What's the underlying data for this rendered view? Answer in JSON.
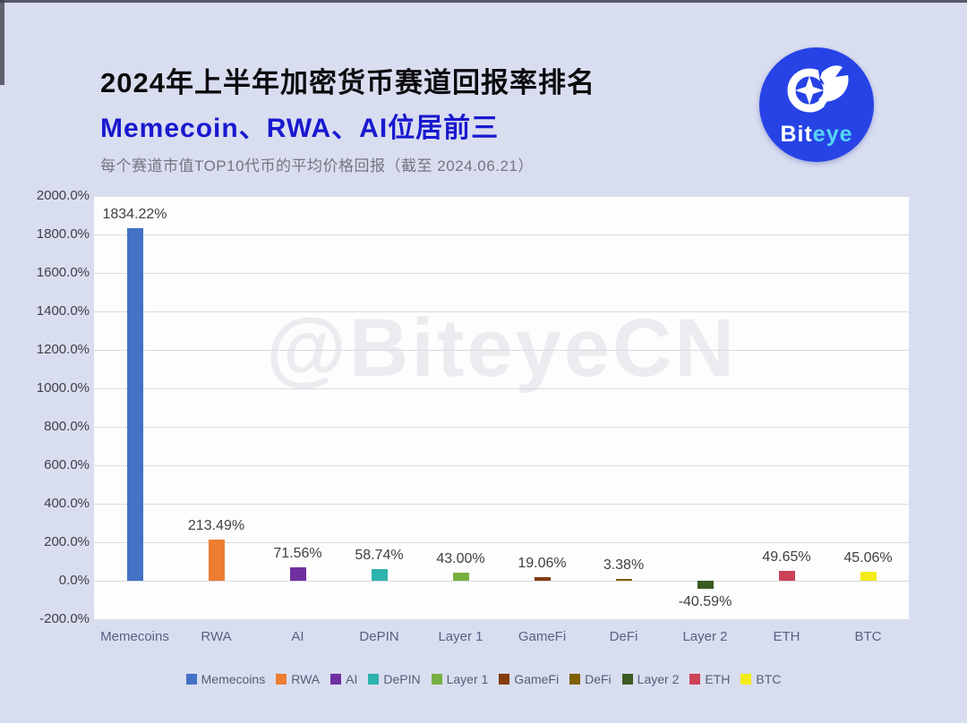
{
  "header": {
    "title": "2024年上半年加密货币赛道回报率排名",
    "subtitle": "Memecoin、RWA、AI位居前三",
    "note": "每个赛道市值TOP10代币的平均价格回报（截至 2024.06.21）",
    "logo": {
      "brand_white": "Bit",
      "brand_cyan": "eye"
    }
  },
  "watermark": "@BiteyeCN",
  "colors": {
    "background": "#d9ddf0",
    "plot_background": "#fdfdfe",
    "subtitle_blue": "#1818cf",
    "logo_blue": "#2743e6",
    "logo_cyan": "#55d7f5",
    "gridline": "#dadae0",
    "axis_text": "#3f3f44",
    "category_text": "#5a6080"
  },
  "chart_data": {
    "type": "bar",
    "title": "2024年上半年加密货币赛道回报率排名",
    "subtitle": "每个赛道市值TOP10代币的平均价格回报（截至 2024.06.21）",
    "categories": [
      "Memecoins",
      "RWA",
      "AI",
      "DePIN",
      "Layer 1",
      "GameFi",
      "DeFi",
      "Layer 2",
      "ETH",
      "BTC"
    ],
    "values": [
      1834.22,
      213.49,
      71.56,
      58.74,
      43.0,
      19.06,
      3.38,
      -40.59,
      49.65,
      45.06
    ],
    "value_labels": [
      "1834.22%",
      "213.49%",
      "71.56%",
      "58.74%",
      "43.00%",
      "19.06%",
      "3.38%",
      "-40.59%",
      "49.65%",
      "45.06%"
    ],
    "colors": [
      "#4472C4",
      "#ED7D31",
      "#7030A0",
      "#2EB3AD",
      "#77B041",
      "#843C0C",
      "#7F6000",
      "#3A5B22",
      "#CC4257",
      "#F2EB18"
    ],
    "xlabel": "",
    "ylabel": "",
    "ylim": [
      -200,
      2000
    ],
    "y_tick_values": [
      2000,
      1800,
      1600,
      1400,
      1200,
      1000,
      800,
      600,
      400,
      200,
      0,
      -200
    ],
    "y_tick_labels": [
      "2000.0%",
      "1800.0%",
      "1600.0%",
      "1400.0%",
      "1200.0%",
      "1000.0%",
      "800.0%",
      "600.0%",
      "400.0%",
      "200.0%",
      "0.0%",
      "-200.0%"
    ],
    "grid": true,
    "legend_position": "bottom",
    "legend": [
      "Memecoins",
      "RWA",
      "AI",
      "DePIN",
      "Layer 1",
      "GameFi",
      "DeFi",
      "Layer 2",
      "ETH",
      "BTC"
    ]
  }
}
